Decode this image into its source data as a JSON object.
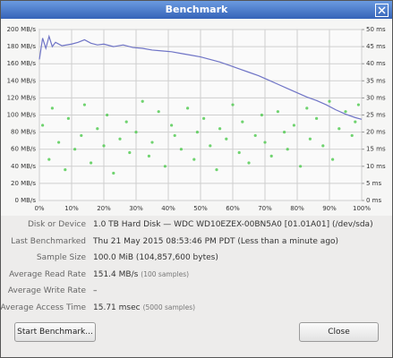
{
  "window": {
    "title": "Benchmark"
  },
  "chart_data": {
    "type": "line",
    "xlim": [
      0,
      100
    ],
    "xticks": [
      {
        "value": 0,
        "label": "0%"
      },
      {
        "value": 10,
        "label": "10%"
      },
      {
        "value": 20,
        "label": "20%"
      },
      {
        "value": 30,
        "label": "30%"
      },
      {
        "value": 40,
        "label": "40%"
      },
      {
        "value": 50,
        "label": "50%"
      },
      {
        "value": 60,
        "label": "60%"
      },
      {
        "value": 70,
        "label": "70%"
      },
      {
        "value": 80,
        "label": "80%"
      },
      {
        "value": 90,
        "label": "90%"
      },
      {
        "value": 100,
        "label": "100%"
      }
    ],
    "ylim": [
      0,
      200
    ],
    "yticks": [
      {
        "value": 0,
        "label": "0 MB/s"
      },
      {
        "value": 20,
        "label": "20 MB/s"
      },
      {
        "value": 40,
        "label": "40 MB/s"
      },
      {
        "value": 60,
        "label": "60 MB/s"
      },
      {
        "value": 80,
        "label": "80 MB/s"
      },
      {
        "value": 100,
        "label": "100 MB/s"
      },
      {
        "value": 120,
        "label": "120 MB/s"
      },
      {
        "value": 140,
        "label": "140 MB/s"
      },
      {
        "value": 160,
        "label": "160 MB/s"
      },
      {
        "value": 180,
        "label": "180 MB/s"
      },
      {
        "value": 200,
        "label": "200 MB/s"
      }
    ],
    "y2lim": [
      0,
      50
    ],
    "y2ticks": [
      {
        "value": 0,
        "label": "0 ms"
      },
      {
        "value": 5,
        "label": "5 ms"
      },
      {
        "value": 10,
        "label": "10 ms"
      },
      {
        "value": 15,
        "label": "15 ms"
      },
      {
        "value": 20,
        "label": "20 ms"
      },
      {
        "value": 25,
        "label": "25 ms"
      },
      {
        "value": 30,
        "label": "30 ms"
      },
      {
        "value": 35,
        "label": "35 ms"
      },
      {
        "value": 40,
        "label": "40 ms"
      },
      {
        "value": 45,
        "label": "45 ms"
      },
      {
        "value": 50,
        "label": "50 ms"
      }
    ],
    "grid": true,
    "series": [
      {
        "type": "scatter",
        "axis": "y2",
        "color": "#4cc94c",
        "x": [
          1,
          3,
          4,
          6,
          8,
          9,
          11,
          13,
          14,
          16,
          18,
          20,
          21,
          23,
          25,
          27,
          28,
          30,
          32,
          34,
          35,
          37,
          39,
          41,
          42,
          44,
          46,
          48,
          49,
          51,
          53,
          55,
          56,
          58,
          60,
          62,
          63,
          65,
          67,
          69,
          70,
          72,
          74,
          76,
          77,
          79,
          81,
          83,
          84,
          86,
          88,
          90,
          91,
          93,
          95,
          97,
          98,
          99
        ],
        "values": [
          22,
          12,
          27,
          17,
          9,
          24,
          15,
          19,
          28,
          11,
          21,
          16,
          25,
          8,
          18,
          23,
          14,
          20,
          29,
          13,
          17,
          26,
          10,
          22,
          19,
          15,
          27,
          12,
          20,
          24,
          16,
          9,
          21,
          18,
          28,
          14,
          23,
          11,
          19,
          25,
          17,
          13,
          26,
          20,
          15,
          22,
          10,
          27,
          18,
          24,
          16,
          29,
          12,
          21,
          26,
          19,
          23,
          28
        ]
      },
      {
        "type": "line",
        "color": "#6f74c6",
        "x": [
          0,
          1,
          2,
          3,
          4,
          5,
          7,
          10,
          12,
          14,
          16,
          18,
          20,
          23,
          26,
          29,
          32,
          35,
          38,
          41,
          44,
          47,
          50,
          53,
          56,
          59,
          62,
          65,
          68,
          71,
          74,
          77,
          80,
          83,
          86,
          89,
          92,
          95,
          98,
          100
        ],
        "values": [
          165,
          190,
          178,
          192,
          180,
          185,
          181,
          183,
          185,
          188,
          184,
          182,
          183,
          180,
          182,
          179,
          178,
          176,
          175,
          174,
          172,
          170,
          168,
          165,
          162,
          158,
          154,
          150,
          146,
          141,
          136,
          131,
          126,
          121,
          117,
          112,
          106,
          101,
          97,
          95
        ]
      }
    ]
  },
  "info": {
    "rows": [
      {
        "label": "Disk or Device",
        "value": "1.0 TB Hard Disk — WDC WD10EZEX-00BN5A0 [01.01A01] (/dev/sda)"
      },
      {
        "label": "Last Benchmarked",
        "value": "Thu 21 May 2015 08:53:46 PM PDT (Less than a minute ago)"
      },
      {
        "label": "Sample Size",
        "value": "100.0 MiB (104,857,600 bytes)"
      },
      {
        "label": "Average Read Rate",
        "value": "151.4 MB/s",
        "note": "(100 samples)"
      },
      {
        "label": "Average Write Rate",
        "value": "–"
      },
      {
        "label": "Average Access Time",
        "value": "15.71 msec",
        "note": "(5000 samples)"
      }
    ]
  },
  "buttons": {
    "start": "Start Benchmark...",
    "close": "Close"
  }
}
